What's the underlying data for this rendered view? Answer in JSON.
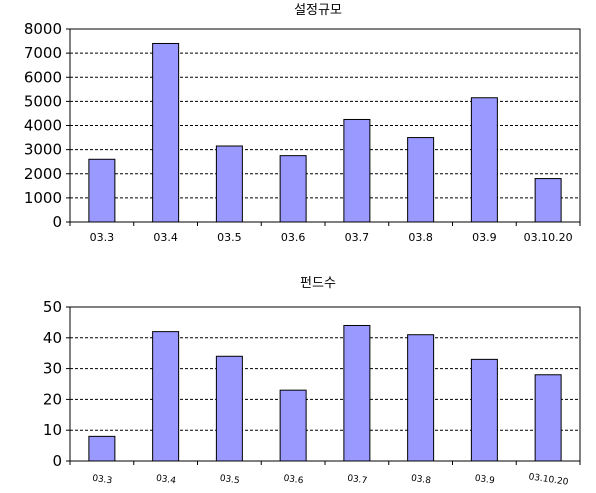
{
  "chart_data": [
    {
      "type": "bar",
      "title": "설정규모",
      "categories": [
        "03.3",
        "03.4",
        "03.5",
        "03.6",
        "03.7",
        "03.8",
        "03.9",
        "03.10.20"
      ],
      "values": [
        2600,
        7400,
        3150,
        2750,
        4250,
        3500,
        5150,
        1800
      ],
      "ylim": [
        0,
        8000
      ],
      "yticks": [
        0,
        1000,
        2000,
        3000,
        4000,
        5000,
        6000,
        7000,
        8000
      ],
      "grid": true,
      "bar_color": "#9999ff"
    },
    {
      "type": "bar",
      "title": "펀드수",
      "categories": [
        "03.3",
        "03.4",
        "03.5",
        "03.6",
        "03.7",
        "03.8",
        "03.9",
        "03.10.20"
      ],
      "values": [
        8,
        42,
        34,
        23,
        44,
        41,
        33,
        28
      ],
      "ylim": [
        0,
        50
      ],
      "yticks": [
        0,
        10,
        20,
        30,
        40,
        50
      ],
      "grid": true,
      "bar_color": "#9999ff"
    }
  ]
}
